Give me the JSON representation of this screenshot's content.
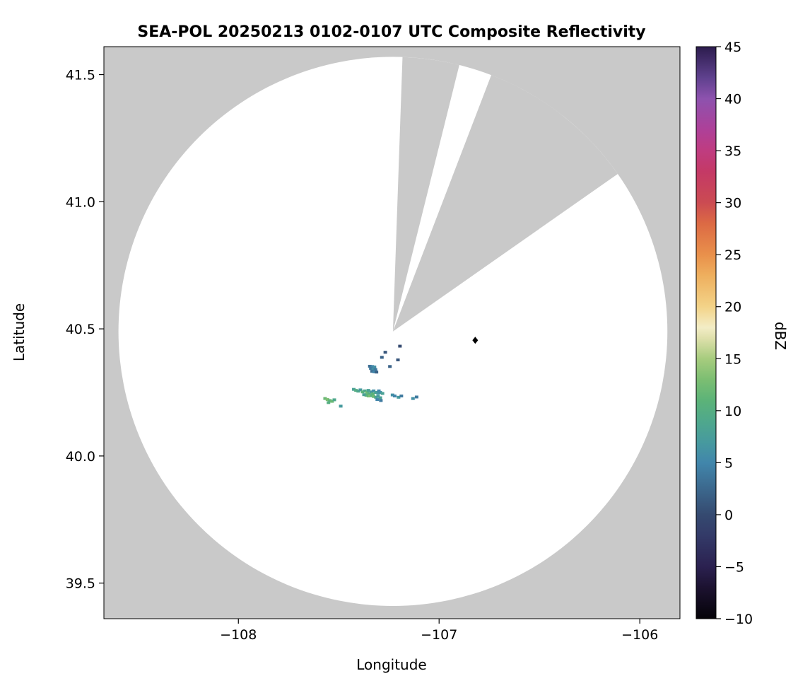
{
  "chart_data": {
    "type": "radar_composite_reflectivity_map",
    "title": "SEA-POL 20250213 0102-0107 UTC Composite Reflectivity",
    "xlabel": "Longitude",
    "ylabel": "Latitude",
    "xlim": [
      -108.67,
      -105.8
    ],
    "ylim": [
      39.36,
      41.61
    ],
    "x_ticks": [
      -108,
      -107,
      -106
    ],
    "x_tick_labels": [
      "−108",
      "−107",
      "−106"
    ],
    "y_ticks": [
      39.5,
      40.0,
      40.5,
      41.0,
      41.5
    ],
    "y_tick_labels": [
      "39.5",
      "40.0",
      "40.5",
      "41.0",
      "41.5"
    ],
    "grid": false,
    "background_color": "#c9c9c9",
    "scan_area_color": "#ffffff",
    "frame_color": "#000000",
    "radar": {
      "center_lon": -107.23,
      "center_lat": 40.49,
      "radius_deg_lat": 1.08
    },
    "blocked_sectors_deg_from_north": [
      [
        2,
        14
      ],
      [
        21,
        55
      ]
    ],
    "marker": {
      "lon": -106.82,
      "lat": 40.455,
      "shape": "diamond",
      "color": "#000000"
    },
    "colorbar": {
      "label": "dBZ",
      "min": -10,
      "max": 45,
      "ticks": [
        -10,
        -5,
        0,
        5,
        10,
        15,
        20,
        25,
        30,
        35,
        40,
        45
      ],
      "tick_labels": [
        "−10",
        "−5",
        "0",
        "5",
        "10",
        "15",
        "20",
        "25",
        "30",
        "35",
        "40",
        "45"
      ],
      "position": "right"
    },
    "colormap_stops": [
      [
        -10,
        "#050308"
      ],
      [
        -7,
        "#1c1230"
      ],
      [
        -5,
        "#2b2150"
      ],
      [
        -2,
        "#333a68"
      ],
      [
        0,
        "#354a70"
      ],
      [
        3,
        "#3d6e93"
      ],
      [
        5,
        "#4186ab"
      ],
      [
        7,
        "#479a9e"
      ],
      [
        9,
        "#4fa88c"
      ],
      [
        11,
        "#5cb378"
      ],
      [
        13,
        "#7cbe72"
      ],
      [
        15,
        "#a7cc7e"
      ],
      [
        17,
        "#dfe0ac"
      ],
      [
        18,
        "#f3edc6"
      ],
      [
        20,
        "#f3d388"
      ],
      [
        23,
        "#eeaf5e"
      ],
      [
        25,
        "#e9904b"
      ],
      [
        28,
        "#dc6a44"
      ],
      [
        30,
        "#cb4b52"
      ],
      [
        33,
        "#c43966"
      ],
      [
        35,
        "#bf3c80"
      ],
      [
        37,
        "#ae4098"
      ],
      [
        40,
        "#8d52ae"
      ],
      [
        42,
        "#5f418e"
      ],
      [
        45,
        "#2c1c4d"
      ]
    ],
    "echoes_lon_lat_dbz": [
      [
        -107.345,
        40.353,
        3
      ],
      [
        -107.333,
        40.352,
        5
      ],
      [
        -107.322,
        40.35,
        6
      ],
      [
        -107.34,
        40.344,
        4
      ],
      [
        -107.328,
        40.342,
        6
      ],
      [
        -107.317,
        40.34,
        4
      ],
      [
        -107.334,
        40.333,
        3
      ],
      [
        -107.323,
        40.331,
        5
      ],
      [
        -107.312,
        40.33,
        2
      ],
      [
        -107.285,
        40.388,
        2
      ],
      [
        -107.268,
        40.408,
        1
      ],
      [
        -107.195,
        40.432,
        0
      ],
      [
        -107.205,
        40.378,
        1
      ],
      [
        -107.245,
        40.352,
        2
      ],
      [
        -107.425,
        40.262,
        8
      ],
      [
        -107.414,
        40.258,
        10
      ],
      [
        -107.403,
        40.255,
        9
      ],
      [
        -107.392,
        40.26,
        7
      ],
      [
        -107.381,
        40.252,
        11
      ],
      [
        -107.37,
        40.256,
        9
      ],
      [
        -107.359,
        40.25,
        12
      ],
      [
        -107.352,
        40.258,
        8
      ],
      [
        -107.348,
        40.246,
        10
      ],
      [
        -107.337,
        40.252,
        7
      ],
      [
        -107.33,
        40.244,
        11
      ],
      [
        -107.326,
        40.256,
        6
      ],
      [
        -107.315,
        40.25,
        8
      ],
      [
        -107.304,
        40.246,
        7
      ],
      [
        -107.3,
        40.256,
        5
      ],
      [
        -107.293,
        40.25,
        6
      ],
      [
        -107.282,
        40.246,
        8
      ],
      [
        -107.337,
        40.237,
        10
      ],
      [
        -107.326,
        40.234,
        12
      ],
      [
        -107.315,
        40.231,
        9
      ],
      [
        -107.304,
        40.234,
        7
      ],
      [
        -107.293,
        40.229,
        8
      ],
      [
        -107.352,
        40.236,
        13
      ],
      [
        -107.363,
        40.239,
        11
      ],
      [
        -107.374,
        40.241,
        8
      ],
      [
        -107.308,
        40.222,
        5
      ],
      [
        -107.29,
        40.218,
        4
      ],
      [
        -107.232,
        40.24,
        6
      ],
      [
        -107.221,
        40.236,
        5
      ],
      [
        -107.202,
        40.231,
        7
      ],
      [
        -107.188,
        40.236,
        4
      ],
      [
        -107.13,
        40.226,
        6
      ],
      [
        -107.112,
        40.232,
        4
      ],
      [
        -107.568,
        40.226,
        12
      ],
      [
        -107.556,
        40.222,
        13
      ],
      [
        -107.544,
        40.218,
        11
      ],
      [
        -107.533,
        40.215,
        12
      ],
      [
        -107.551,
        40.21,
        10
      ],
      [
        -107.522,
        40.221,
        9
      ],
      [
        -107.49,
        40.196,
        7
      ]
    ]
  }
}
